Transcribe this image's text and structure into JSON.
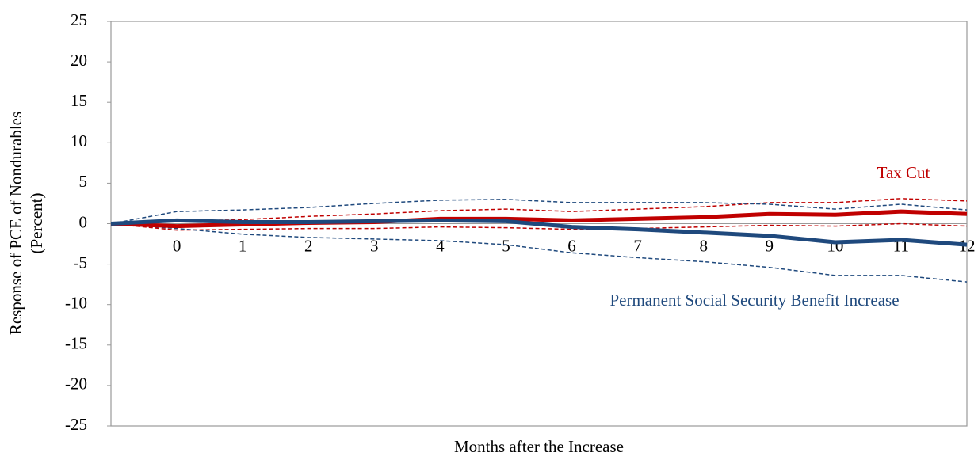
{
  "chart_data": {
    "type": "line",
    "y_label": [
      "Response of PCE of Nondurables",
      "(Percent)"
    ],
    "x_label": "Months after the Increase",
    "categories": [
      null,
      "0",
      "1",
      "2",
      "3",
      "4",
      "5",
      "6",
      "7",
      "8",
      "9",
      "10",
      "11",
      "12"
    ],
    "ylim": [
      -25,
      25
    ],
    "yticks": [
      -25,
      -20,
      -15,
      -10,
      -5,
      0,
      5,
      10,
      15,
      20,
      25
    ],
    "grid": false,
    "series": [
      {
        "name": "Tax Cut",
        "color": "#c00000",
        "values": [
          0,
          -0.3,
          -0.1,
          0.1,
          0.2,
          0.6,
          0.6,
          0.4,
          0.6,
          0.8,
          1.2,
          1.1,
          1.5,
          1.2
        ],
        "upper": [
          0,
          0.3,
          0.5,
          0.9,
          1.2,
          1.6,
          1.8,
          1.5,
          1.8,
          2.1,
          2.6,
          2.6,
          3.1,
          2.8
        ],
        "lower": [
          0,
          -0.8,
          -0.7,
          -0.6,
          -0.6,
          -0.4,
          -0.5,
          -0.7,
          -0.6,
          -0.4,
          -0.2,
          -0.3,
          0,
          -0.3
        ]
      },
      {
        "name": "Permanent Social Security Benefit Increase",
        "color": "#1f497d",
        "values": [
          0,
          0.4,
          0.2,
          0.2,
          0.3,
          0.4,
          0.3,
          -0.4,
          -0.7,
          -1.1,
          -1.5,
          -2.3,
          -2.0,
          -2.6
        ],
        "upper": [
          0,
          1.5,
          1.7,
          2.0,
          2.5,
          2.9,
          3.0,
          2.6,
          2.6,
          2.6,
          2.4,
          1.8,
          2.4,
          1.7
        ],
        "lower": [
          0,
          -0.6,
          -1.3,
          -1.7,
          -1.9,
          -2.1,
          -2.6,
          -3.6,
          -4.2,
          -4.7,
          -5.4,
          -6.4,
          -6.4,
          -7.2
        ]
      }
    ]
  }
}
